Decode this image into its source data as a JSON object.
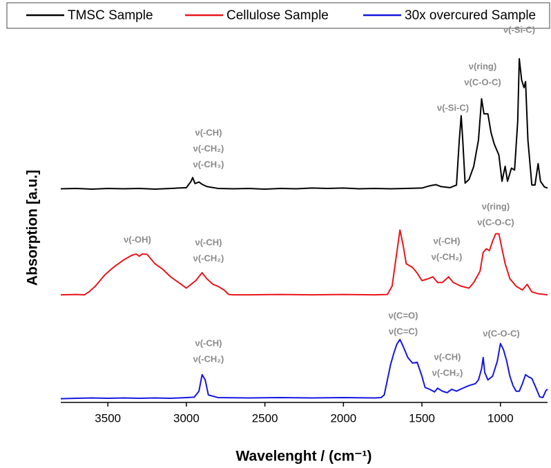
{
  "chart_data": {
    "type": "line",
    "xlabel": "Wavelenght / (cm⁻¹)",
    "ylabel": "Absorption [a.u.]",
    "xlim": [
      3800,
      700
    ],
    "xticks": [
      3500,
      3000,
      2500,
      2000,
      1500,
      1000
    ],
    "ylim": [
      0,
      100
    ],
    "legend": "top",
    "series": [
      {
        "name": "TMSC Sample",
        "color": "#000000",
        "x": [
          3800,
          3700,
          3600,
          3500,
          3400,
          3300,
          3200,
          3100,
          3000,
          2970,
          2960,
          2945,
          2920,
          2900,
          2870,
          2800,
          2700,
          2600,
          2500,
          2400,
          2300,
          2200,
          2100,
          2000,
          1900,
          1800,
          1700,
          1600,
          1500,
          1450,
          1410,
          1380,
          1320,
          1280,
          1262,
          1250,
          1240,
          1225,
          1200,
          1170,
          1140,
          1120,
          1105,
          1080,
          1060,
          1040,
          1010,
          990,
          970,
          955,
          930,
          910,
          890,
          880,
          865,
          850,
          840,
          825,
          800,
          780,
          760,
          745,
          720,
          700
        ],
        "values": [
          57,
          57.1,
          56.9,
          57.1,
          57,
          57.1,
          56.9,
          57.1,
          57.3,
          59,
          60,
          58.4,
          58.8,
          58.2,
          57.6,
          57.1,
          57,
          57.1,
          56.9,
          57.1,
          57,
          57.2,
          57.1,
          57.2,
          57,
          57.1,
          57,
          57.1,
          57.2,
          57.8,
          58.1,
          57.6,
          57.3,
          58,
          70,
          76.5,
          70,
          58.5,
          59.5,
          63,
          70,
          81,
          77,
          77,
          72,
          69,
          66,
          59,
          63,
          59,
          62.5,
          62,
          75,
          91.7,
          86,
          84,
          85.6,
          70,
          58,
          58,
          63.7,
          59,
          57.5,
          57.2
        ]
      },
      {
        "name": "Cellulose Sample",
        "color": "#e8151b",
        "x": [
          3800,
          3700,
          3650,
          3620,
          3580,
          3550,
          3520,
          3480,
          3450,
          3400,
          3350,
          3320,
          3300,
          3280,
          3250,
          3200,
          3150,
          3100,
          3050,
          3000,
          2970,
          2940,
          2900,
          2870,
          2830,
          2800,
          2760,
          2730,
          2700,
          2600,
          2400,
          2200,
          2000,
          1800,
          1720,
          1690,
          1660,
          1640,
          1620,
          1600,
          1560,
          1530,
          1500,
          1460,
          1430,
          1400,
          1370,
          1330,
          1300,
          1250,
          1200,
          1170,
          1150,
          1130,
          1110,
          1090,
          1070,
          1050,
          1030,
          1010,
          995,
          970,
          940,
          900,
          860,
          830,
          800,
          760,
          700
        ],
        "values": [
          28.7,
          28.8,
          28.7,
          29.5,
          31,
          32.5,
          34,
          35.5,
          36.5,
          38,
          39.2,
          39.6,
          39,
          39.6,
          39.5,
          37,
          35.5,
          33.5,
          32,
          30.5,
          31.5,
          32.5,
          34.6,
          33,
          31.5,
          31,
          30,
          28.8,
          28.7,
          28.7,
          28.8,
          28.7,
          28.8,
          28.7,
          28.8,
          31,
          40,
          46,
          42,
          37,
          36,
          34.5,
          32.5,
          33,
          33.5,
          32,
          32,
          33.5,
          32,
          31,
          30.5,
          32,
          33.5,
          35,
          40,
          41,
          40.5,
          43,
          45,
          45,
          42,
          37,
          33,
          31,
          30,
          31.5,
          29.5,
          29,
          28.7
        ]
      },
      {
        "name": "30x overcured Sample",
        "color": "#1515e0",
        "x": [
          3800,
          3700,
          3600,
          3500,
          3400,
          3300,
          3200,
          3100,
          3000,
          2950,
          2920,
          2900,
          2880,
          2860,
          2800,
          2600,
          2400,
          2200,
          2000,
          1800,
          1760,
          1740,
          1720,
          1700,
          1680,
          1660,
          1640,
          1620,
          1590,
          1560,
          1530,
          1500,
          1480,
          1450,
          1420,
          1400,
          1370,
          1340,
          1310,
          1280,
          1240,
          1200,
          1160,
          1140,
          1120,
          1110,
          1100,
          1080,
          1050,
          1020,
          1000,
          980,
          960,
          940,
          920,
          900,
          880,
          860,
          840,
          820,
          800,
          780,
          750,
          730,
          710,
          700
        ],
        "values": [
          1,
          1.1,
          1.2,
          1.1,
          1.2,
          1.1,
          1.2,
          1.1,
          1.3,
          1.4,
          3,
          7.4,
          6,
          2,
          1.3,
          1.2,
          1.3,
          1.2,
          1.3,
          1.2,
          1.3,
          2,
          6,
          10,
          13,
          15.5,
          16.8,
          15,
          12,
          10.5,
          10.7,
          7,
          4,
          3.5,
          2.8,
          3.8,
          3,
          2.6,
          3.5,
          3,
          3.8,
          4.5,
          5,
          6,
          9,
          12,
          8,
          6,
          7,
          11,
          15.7,
          14,
          11,
          7,
          4.5,
          3,
          3,
          5,
          7.4,
          6.8,
          6.4,
          4.5,
          1.5,
          1.3,
          3.2,
          3.5
        ]
      }
    ],
    "annotations": [
      [
        "ν(-CH)",
        "ν(-CH₂)",
        "ν(-CH₃)"
      ],
      [
        "ν(-Si-C)"
      ],
      [
        "ν(ring)",
        "ν(C-O-C)"
      ],
      [
        "ν(-Si-C)"
      ],
      [
        "ν(-OH)"
      ],
      [
        "ν(-CH)",
        "ν(-CH₂)"
      ],
      [
        "ν(-CH)",
        "ν(-CH₂)"
      ],
      [
        "ν(ring)",
        "ν(C-O-C)"
      ],
      [
        "ν(C=O)",
        "ν(C=C)"
      ],
      [
        "ν(-CH)",
        "ν(-CH₂)"
      ],
      [
        "ν(-CH)",
        "ν(-CH₂)"
      ],
      [
        "ν(C-O-C)"
      ]
    ]
  }
}
